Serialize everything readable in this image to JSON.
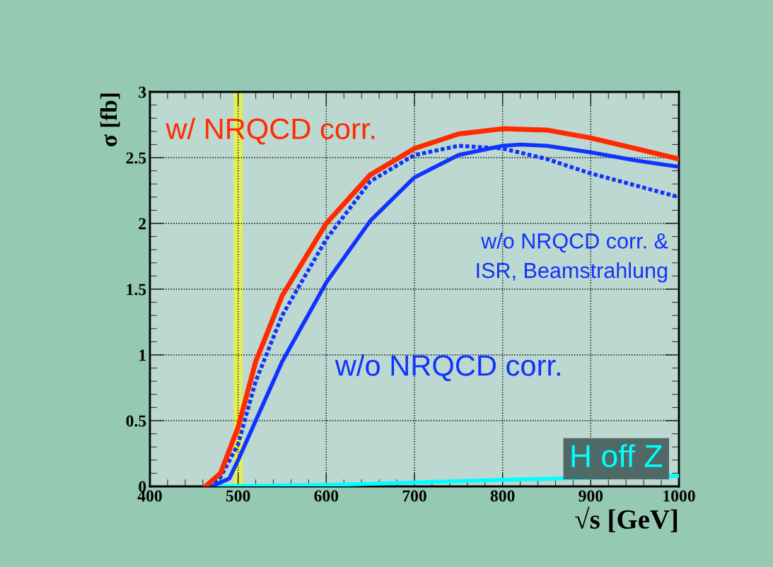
{
  "chart_data": {
    "type": "line",
    "xlabel": "√s [GeV]",
    "ylabel": "σ [fb]",
    "xlim": [
      400,
      1000
    ],
    "ylim": [
      0,
      3
    ],
    "xticks": [
      400,
      500,
      600,
      700,
      800,
      900,
      1000
    ],
    "yticks": [
      0,
      0.5,
      1,
      1.5,
      2,
      2.5,
      3
    ],
    "grid": true,
    "series": [
      {
        "color": "#ff2a00",
        "line_style": "solid",
        "x": [
          463,
          480,
          500,
          520,
          550,
          600,
          650,
          700,
          750,
          800,
          850,
          900,
          950,
          1000
        ],
        "values": [
          0,
          0.1,
          0.45,
          0.95,
          1.45,
          2.0,
          2.37,
          2.57,
          2.68,
          2.72,
          2.71,
          2.65,
          2.57,
          2.49
        ]
      },
      {
        "color": "#1133ff",
        "line_style": "dotted",
        "x": [
          467,
          480,
          500,
          520,
          550,
          600,
          650,
          700,
          750,
          800,
          850,
          900,
          950,
          1000
        ],
        "values": [
          0,
          0.07,
          0.32,
          0.8,
          1.3,
          1.88,
          2.32,
          2.52,
          2.59,
          2.57,
          2.49,
          2.38,
          2.29,
          2.2
        ]
      },
      {
        "color": "#1133ff",
        "line_style": "solid",
        "x": [
          470,
          490,
          500,
          520,
          550,
          600,
          650,
          700,
          750,
          800,
          820,
          850,
          900,
          950,
          1000
        ],
        "values": [
          0,
          0.06,
          0.2,
          0.5,
          0.95,
          1.55,
          2.02,
          2.35,
          2.52,
          2.59,
          2.6,
          2.59,
          2.54,
          2.48,
          2.43
        ]
      },
      {
        "color": "#00ffff",
        "line_style": "solid",
        "x": [
          465,
          600,
          700,
          800,
          1000
        ],
        "values": [
          0,
          0.01,
          0.03,
          0.05,
          0.08
        ]
      }
    ],
    "bands": [
      {
        "axis": "x",
        "from": 495,
        "to": 505,
        "color": "#ffff00"
      }
    ],
    "annotations": [
      "w/ NRQCD corr.",
      "w/o NRQCD corr.",
      "w/o NRQCD corr. &\nISR, Beamstrahlung",
      "H off Z"
    ]
  }
}
